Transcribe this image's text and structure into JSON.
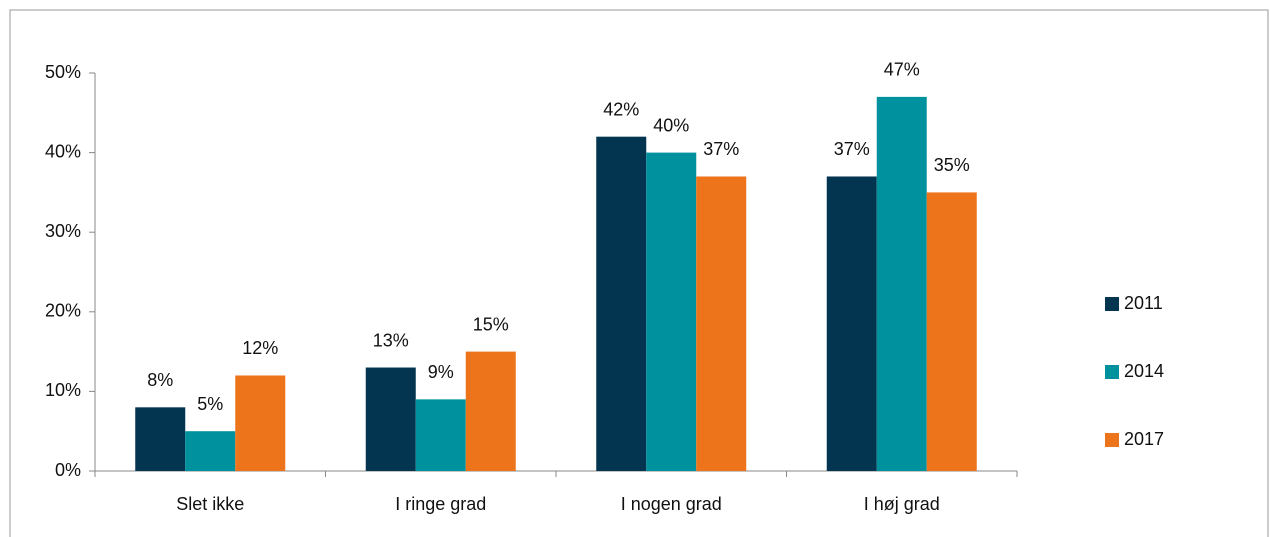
{
  "chart_data": {
    "type": "bar",
    "categories": [
      "Slet ikke",
      "I ringe grad",
      "I nogen grad",
      "I høj grad"
    ],
    "series": [
      {
        "name": "2011",
        "color": "#033550",
        "values": [
          8,
          13,
          42,
          37
        ],
        "value_labels": [
          "8%",
          "13%",
          "42%",
          "37%"
        ]
      },
      {
        "name": "2014",
        "color": "#00919e",
        "values": [
          5,
          9,
          40,
          47
        ],
        "value_labels": [
          "5%",
          "9%",
          "40%",
          "47%"
        ]
      },
      {
        "name": "2017",
        "color": "#ee741c",
        "values": [
          12,
          15,
          37,
          35
        ],
        "value_labels": [
          "12%",
          "15%",
          "37%",
          "35%"
        ]
      }
    ],
    "ylim": [
      0,
      50
    ],
    "yticks": [
      {
        "value": 0,
        "label": "0%"
      },
      {
        "value": 10,
        "label": "10%"
      },
      {
        "value": 20,
        "label": "20%"
      },
      {
        "value": 30,
        "label": "30%"
      },
      {
        "value": 40,
        "label": "40%"
      },
      {
        "value": 50,
        "label": "50%"
      }
    ],
    "grid": false,
    "legend": "right"
  }
}
